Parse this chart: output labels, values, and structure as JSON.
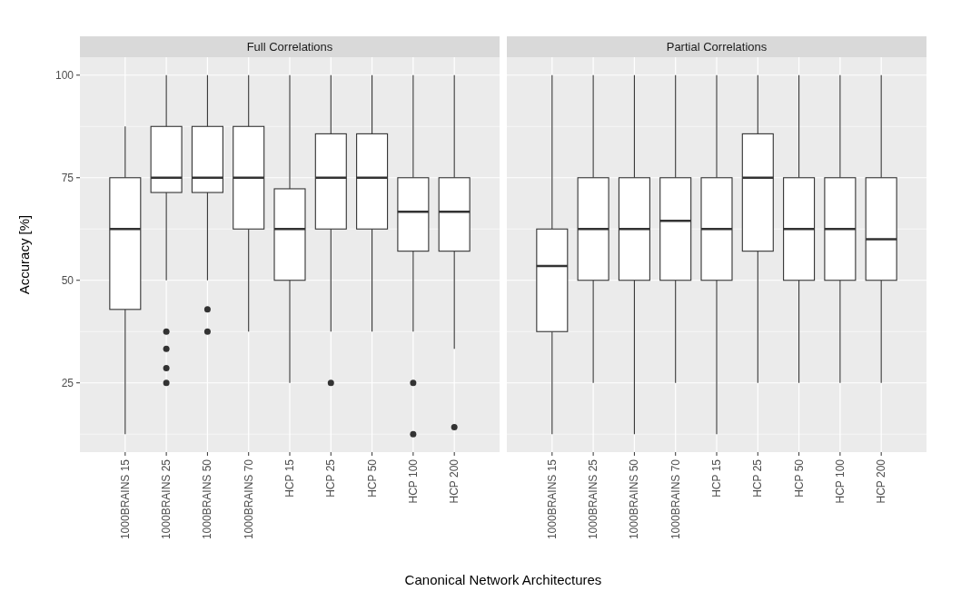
{
  "chart_data": [
    {
      "type": "box",
      "title": "Full Correlations",
      "ylabel": "Accuracy [%]",
      "xlabel": "Canonical Network Architectures",
      "categories": [
        "1000BRAINS 15",
        "1000BRAINS 25",
        "1000BRAINS 50",
        "1000BRAINS 70",
        "HCP 15",
        "HCP 25",
        "HCP 50",
        "HCP 100",
        "HCP 200"
      ],
      "ylim": [
        8.125,
        104.375
      ],
      "yticks": [
        25,
        50,
        75,
        100
      ],
      "grid": true,
      "color": "#ffffff",
      "boxes": [
        {
          "low": 12.5,
          "q1": 42.9,
          "median": 62.5,
          "q3": 75,
          "high": 87.5
        },
        {
          "low": 50,
          "q1": 71.4,
          "median": 75,
          "q3": 87.5,
          "high": 100,
          "outliers": [
            37.5,
            33.3,
            28.6,
            25
          ]
        },
        {
          "low": 50,
          "q1": 71.4,
          "median": 75,
          "q3": 87.5,
          "high": 100,
          "outliers": [
            42.9,
            37.5
          ]
        },
        {
          "low": 37.5,
          "q1": 62.5,
          "median": 75,
          "q3": 87.5,
          "high": 100
        },
        {
          "low": 25,
          "q1": 50,
          "median": 62.5,
          "q3": 72.3,
          "high": 100
        },
        {
          "low": 37.5,
          "q1": 62.5,
          "median": 75,
          "q3": 85.7,
          "high": 100,
          "outliers": [
            25
          ]
        },
        {
          "low": 37.5,
          "q1": 62.5,
          "median": 75,
          "q3": 85.7,
          "high": 100
        },
        {
          "low": 37.5,
          "q1": 57.1,
          "median": 66.7,
          "q3": 75,
          "high": 100,
          "outliers": [
            25,
            12.5
          ]
        },
        {
          "low": 33.3,
          "q1": 57.1,
          "median": 66.7,
          "q3": 75,
          "high": 100,
          "outliers": [
            14.2
          ]
        }
      ]
    },
    {
      "type": "box",
      "title": "Partial Correlations",
      "categories": [
        "1000BRAINS 15",
        "1000BRAINS 25",
        "1000BRAINS 50",
        "1000BRAINS 70",
        "HCP 15",
        "HCP 25",
        "HCP 50",
        "HCP 100",
        "HCP 200"
      ],
      "ylim": [
        8.125,
        104.375
      ],
      "yticks": [
        25,
        50,
        75,
        100
      ],
      "tick_labels": "x",
      "grid": true,
      "color": "#ffffff",
      "boxes": [
        {
          "low": 12.5,
          "q1": 37.5,
          "median": 53.5,
          "q3": 62.5,
          "high": 100
        },
        {
          "low": 25,
          "q1": 50,
          "median": 62.5,
          "q3": 75,
          "high": 100
        },
        {
          "low": 12.5,
          "q1": 50,
          "median": 62.5,
          "q3": 75,
          "high": 100
        },
        {
          "low": 25,
          "q1": 50,
          "median": 64.5,
          "q3": 75,
          "high": 100
        },
        {
          "low": 12.5,
          "q1": 50,
          "median": 62.5,
          "q3": 75,
          "high": 100
        },
        {
          "low": 25,
          "q1": 57.1,
          "median": 75,
          "q3": 85.7,
          "high": 100
        },
        {
          "low": 25,
          "q1": 50,
          "median": 62.5,
          "q3": 75,
          "high": 100
        },
        {
          "low": 25,
          "q1": 50,
          "median": 62.5,
          "q3": 75,
          "high": 100
        },
        {
          "low": 25,
          "q1": 50,
          "median": 60,
          "q3": 75,
          "high": 100
        }
      ]
    }
  ]
}
